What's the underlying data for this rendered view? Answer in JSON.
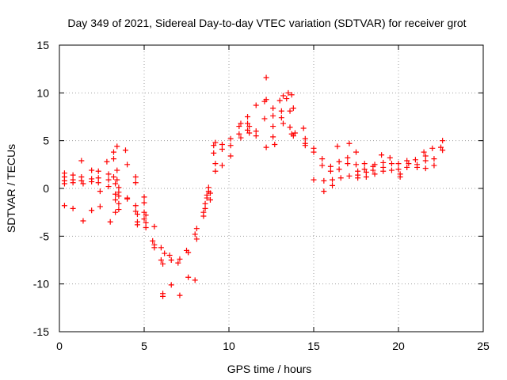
{
  "chart_data": {
    "type": "scatter",
    "title": "Day 349 of 2021, Sidereal Day-to-day VTEC variation (SDTVAR) for receiver grot",
    "xlabel": "GPS time / hours",
    "ylabel": "SDTVAR / TECUs",
    "xlim": [
      0,
      25
    ],
    "ylim": [
      -15,
      15
    ],
    "xticks": [
      0,
      5,
      10,
      15,
      20,
      25
    ],
    "yticks": [
      -15,
      -10,
      -5,
      0,
      5,
      10,
      15
    ],
    "xtick_labels": [
      "0",
      "5",
      "10",
      "15",
      "20",
      "25"
    ],
    "ytick_labels": [
      "-15",
      "-10",
      "-5",
      "0",
      "5",
      "10",
      "15"
    ],
    "grid": true,
    "marker": "plus",
    "color": "#ff0000",
    "series": [
      {
        "name": "SDTVAR",
        "x": [
          0.3,
          0.3,
          0.3,
          0.3,
          0.3,
          0.8,
          0.8,
          0.8,
          0.8,
          1.3,
          1.3,
          1.3,
          1.4,
          1.4,
          1.9,
          1.9,
          1.9,
          1.9,
          2.3,
          2.3,
          2.3,
          2.4,
          2.4,
          2.8,
          2.9,
          2.9,
          2.9,
          3.0,
          3.2,
          3.2,
          3.2,
          3.3,
          3.3,
          3.3,
          3.3,
          3.4,
          3.4,
          3.4,
          3.5,
          3.5,
          3.5,
          3.5,
          3.5,
          3.9,
          4.0,
          4.0,
          4.0,
          4.5,
          4.5,
          4.5,
          4.5,
          4.6,
          4.6,
          4.6,
          5.0,
          5.0,
          5.0,
          5.0,
          5.1,
          5.1,
          5.1,
          5.5,
          5.6,
          5.6,
          5.6,
          6.0,
          6.0,
          6.1,
          6.1,
          6.1,
          6.2,
          6.5,
          6.6,
          6.6,
          7.0,
          7.1,
          7.1,
          7.5,
          7.6,
          7.6,
          8.0,
          8.0,
          8.1,
          8.1,
          8.5,
          8.5,
          8.6,
          8.6,
          8.7,
          8.7,
          8.8,
          8.8,
          8.9,
          8.9,
          9.1,
          9.1,
          9.2,
          9.2,
          9.2,
          9.6,
          9.6,
          9.6,
          10.1,
          10.1,
          10.1,
          10.6,
          10.6,
          10.7,
          10.7,
          11.1,
          11.1,
          11.1,
          11.2,
          11.2,
          11.6,
          11.6,
          11.6,
          12.1,
          12.1,
          12.2,
          12.2,
          12.2,
          12.6,
          12.6,
          12.6,
          12.6,
          12.7,
          13.0,
          13.1,
          13.1,
          13.2,
          13.2,
          13.4,
          13.5,
          13.6,
          13.6,
          13.7,
          13.7,
          13.8,
          13.8,
          13.9,
          14.4,
          14.5,
          14.5,
          14.5,
          15.0,
          15.0,
          15.0,
          15.5,
          15.5,
          15.6,
          15.6,
          16.0,
          16.0,
          16.1,
          16.1,
          16.4,
          16.5,
          16.5,
          16.6,
          17.0,
          17.0,
          17.1,
          17.1,
          17.5,
          17.5,
          17.6,
          17.6,
          17.6,
          18.0,
          18.0,
          18.1,
          18.1,
          18.5,
          18.5,
          18.6,
          18.6,
          19.0,
          19.1,
          19.1,
          19.1,
          19.5,
          19.6,
          19.6,
          20.0,
          20.0,
          20.1,
          20.1,
          20.5,
          20.5,
          20.6,
          21.0,
          21.1,
          21.1,
          21.5,
          21.6,
          21.6,
          21.6,
          22.0,
          22.1,
          22.1,
          22.5,
          22.6,
          22.6
        ],
        "y": [
          1.6,
          1.2,
          0.8,
          0.5,
          -1.8,
          1.4,
          0.9,
          0.6,
          -2.1,
          2.9,
          1.2,
          0.8,
          0.5,
          -3.4,
          1.9,
          1.0,
          0.7,
          -2.3,
          1.8,
          1.1,
          0.6,
          -0.3,
          -1.9,
          2.8,
          1.5,
          0.9,
          0.2,
          -3.5,
          3.8,
          3.1,
          1.2,
          0.5,
          -0.6,
          -2.5,
          -1.2,
          4.4,
          1.9,
          0.9,
          0.1,
          -0.8,
          -1.6,
          -2.2,
          -0.4,
          4.0,
          2.5,
          -1.0,
          -1.1,
          1.2,
          0.6,
          -1.8,
          -2.4,
          -2.7,
          -3.5,
          -3.8,
          -0.9,
          -1.5,
          -2.5,
          -3.2,
          -3.6,
          -4.1,
          -2.8,
          -5.5,
          -5.9,
          -6.2,
          -4.0,
          -6.2,
          -7.5,
          -7.9,
          -11.0,
          -11.3,
          -6.8,
          -7.0,
          -7.5,
          -10.1,
          -7.8,
          -11.2,
          -7.4,
          -6.5,
          -6.7,
          -9.3,
          -9.6,
          -4.8,
          -4.2,
          -5.3,
          -2.5,
          -2.9,
          -2.1,
          -1.6,
          -1.0,
          -0.7,
          -0.3,
          0.1,
          -0.5,
          -1.2,
          4.5,
          3.7,
          1.8,
          2.6,
          4.8,
          2.4,
          4.1,
          4.6,
          5.2,
          3.4,
          4.5,
          6.5,
          5.7,
          6.8,
          5.3,
          7.5,
          6.8,
          6.1,
          5.8,
          6.5,
          8.7,
          6.0,
          5.5,
          9.1,
          7.3,
          11.6,
          9.3,
          4.3,
          8.4,
          7.6,
          6.5,
          5.4,
          4.6,
          9.2,
          8.1,
          7.4,
          9.7,
          6.8,
          9.4,
          10.0,
          8.1,
          6.4,
          9.8,
          5.7,
          8.4,
          5.5,
          5.8,
          6.3,
          5.2,
          4.7,
          4.5,
          4.2,
          3.8,
          0.9,
          3.1,
          2.4,
          0.8,
          -0.3,
          2.3,
          1.8,
          0.9,
          0.3,
          4.4,
          2.8,
          2.0,
          1.1,
          3.2,
          2.6,
          4.7,
          1.3,
          3.8,
          2.5,
          1.8,
          1.4,
          1.1,
          2.6,
          2.0,
          1.7,
          1.2,
          2.3,
          1.9,
          2.5,
          1.5,
          3.5,
          2.2,
          2.7,
          1.8,
          3.2,
          2.6,
          1.9,
          2.6,
          2.0,
          1.5,
          1.2,
          2.9,
          2.2,
          2.6,
          3.0,
          2.5,
          2.2,
          3.8,
          3.4,
          2.9,
          2.1,
          4.2,
          3.1,
          2.4,
          4.3,
          4.0,
          5.0
        ]
      }
    ]
  }
}
